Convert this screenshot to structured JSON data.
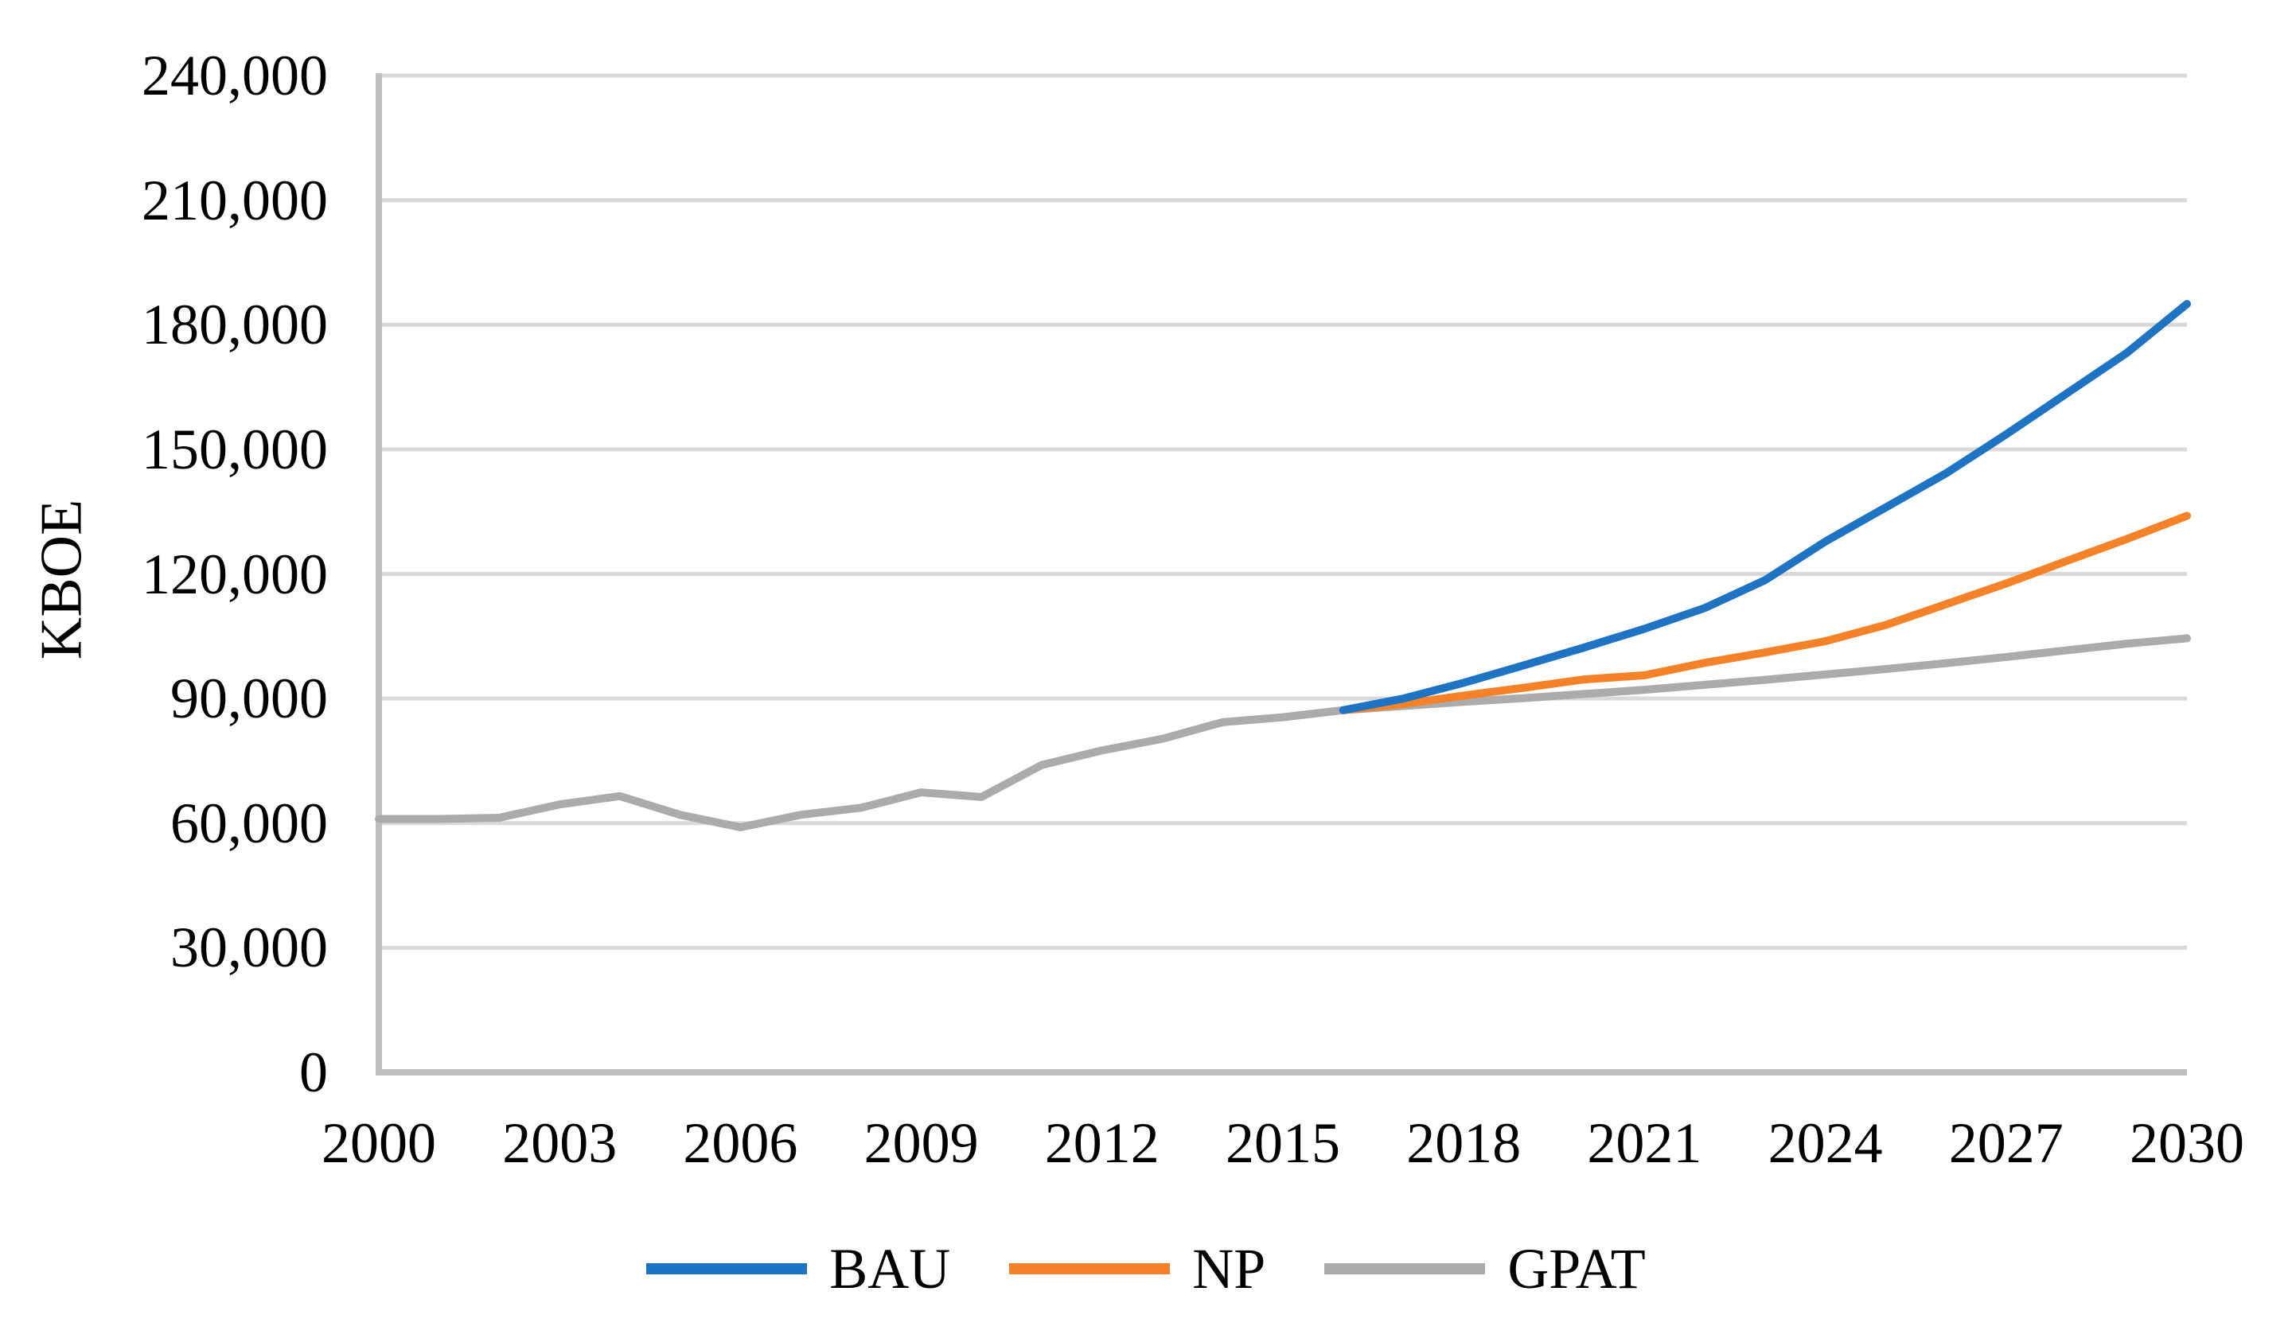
{
  "chart_data": {
    "type": "line",
    "title": "",
    "xlabel": "",
    "ylabel": "KBOE",
    "xlim": [
      2000,
      2030
    ],
    "ylim": [
      0,
      240000
    ],
    "grid": "horizontal",
    "grid_color": "#D9D9D9",
    "axis_color": "#BFBFBF",
    "legend_position": "bottom",
    "y_ticks": [
      {
        "value": 0,
        "label": "0"
      },
      {
        "value": 30000,
        "label": "30,000"
      },
      {
        "value": 60000,
        "label": "60,000"
      },
      {
        "value": 90000,
        "label": "90,000"
      },
      {
        "value": 120000,
        "label": "120,000"
      },
      {
        "value": 150000,
        "label": "150,000"
      },
      {
        "value": 180000,
        "label": "180,000"
      },
      {
        "value": 210000,
        "label": "210,000"
      },
      {
        "value": 240000,
        "label": "240,000"
      }
    ],
    "x_ticks": [
      {
        "value": 2000,
        "label": "2000"
      },
      {
        "value": 2003,
        "label": "2003"
      },
      {
        "value": 2006,
        "label": "2006"
      },
      {
        "value": 2009,
        "label": "2009"
      },
      {
        "value": 2012,
        "label": "2012"
      },
      {
        "value": 2015,
        "label": "2015"
      },
      {
        "value": 2018,
        "label": "2018"
      },
      {
        "value": 2021,
        "label": "2021"
      },
      {
        "value": 2024,
        "label": "2024"
      },
      {
        "value": 2027,
        "label": "2027"
      },
      {
        "value": 2030,
        "label": "2030"
      }
    ],
    "series": [
      {
        "name": "GPAT",
        "color": "#ABABAB",
        "x": [
          2000,
          2001,
          2002,
          2003,
          2004,
          2005,
          2006,
          2007,
          2008,
          2009,
          2010,
          2011,
          2012,
          2013,
          2014,
          2015,
          2016,
          2017,
          2018,
          2019,
          2020,
          2021,
          2022,
          2023,
          2024,
          2025,
          2026,
          2027,
          2028,
          2029,
          2030
        ],
        "values": [
          61000,
          61000,
          61300,
          64500,
          66500,
          62000,
          59000,
          62000,
          63700,
          67400,
          66300,
          74000,
          77500,
          80300,
          84300,
          85500,
          87200,
          88200,
          89200,
          90100,
          91100,
          92100,
          93300,
          94500,
          95800,
          97100,
          98500,
          100000,
          101600,
          103200,
          104500
        ]
      },
      {
        "name": "NP",
        "color": "#F58229",
        "x": [
          2016,
          2017,
          2018,
          2019,
          2020,
          2021,
          2022,
          2023,
          2024,
          2025,
          2026,
          2027,
          2028,
          2029,
          2030
        ],
        "values": [
          87200,
          88700,
          90700,
          92600,
          94600,
          95600,
          98600,
          101100,
          103800,
          107700,
          112700,
          117700,
          123100,
          128400,
          134000
        ]
      },
      {
        "name": "BAU",
        "color": "#1E73C2",
        "x": [
          2016,
          2017,
          2018,
          2019,
          2020,
          2021,
          2022,
          2023,
          2024,
          2025,
          2026,
          2027,
          2028,
          2029,
          2030
        ],
        "values": [
          87200,
          90000,
          93800,
          98000,
          102300,
          106800,
          111800,
          118500,
          127800,
          136000,
          144200,
          153600,
          163400,
          173200,
          185000
        ]
      }
    ],
    "legend_order": [
      "BAU",
      "NP",
      "GPAT"
    ]
  }
}
